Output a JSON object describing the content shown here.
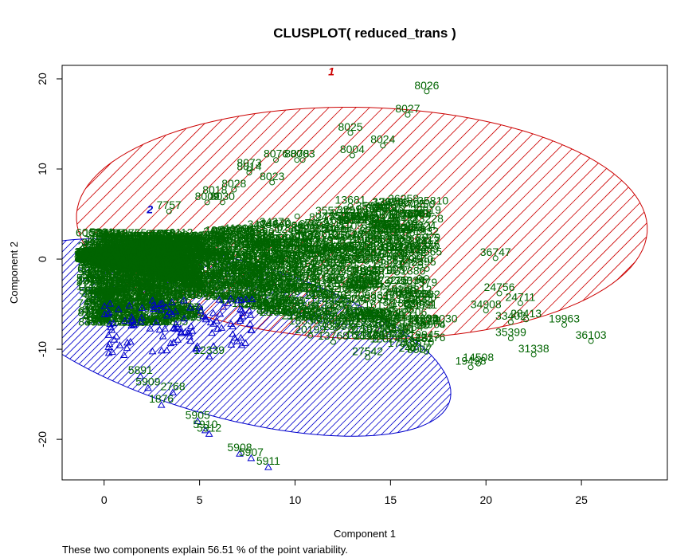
{
  "chart_data": {
    "type": "scatter",
    "title": "CLUSPLOT( reduced_trans )",
    "xlabel": "Component 1",
    "ylabel": "Component 2",
    "xlim": [
      -2.2,
      29.5
    ],
    "ylim": [
      -24.5,
      21.5
    ],
    "x_ticks": [
      0,
      5,
      10,
      15,
      20,
      25
    ],
    "y_ticks": [
      -20,
      -10,
      0,
      10,
      20
    ],
    "grid": false,
    "footnote": "These two components explain 56.51 % of the point variability.",
    "clusters": [
      {
        "label": "1",
        "center": [
          13.5,
          4.0
        ],
        "semi_axes": [
          15.0,
          12.8
        ],
        "angle_deg": -9,
        "color": "#cc0000",
        "marker": "circle"
      },
      {
        "label": "2",
        "center": [
          6.3,
          -8.7
        ],
        "semi_axes": [
          14.3,
          7.5
        ],
        "angle_deg": -41,
        "color": "#0000cc",
        "marker": "triangle"
      }
    ],
    "point_color": "#006400",
    "points": [
      {
        "x": 16.9,
        "y": 18.6,
        "label": "8026",
        "cluster": 1
      },
      {
        "x": 15.9,
        "y": 16.0,
        "label": "8027",
        "cluster": 1
      },
      {
        "x": 12.9,
        "y": 14.0,
        "label": "8025",
        "cluster": 1
      },
      {
        "x": 14.6,
        "y": 12.6,
        "label": "8024",
        "cluster": 1
      },
      {
        "x": 13.0,
        "y": 11.5,
        "label": "8004",
        "cluster": 1
      },
      {
        "x": 10.4,
        "y": 11.0,
        "label": "8003",
        "cluster": 1
      },
      {
        "x": 9.0,
        "y": 11.0,
        "label": "8076",
        "cluster": 1
      },
      {
        "x": 10.1,
        "y": 11.0,
        "label": "8078",
        "cluster": 1
      },
      {
        "x": 7.6,
        "y": 10.0,
        "label": "8073",
        "cluster": 1
      },
      {
        "x": 7.6,
        "y": 9.6,
        "label": "8014",
        "cluster": 1
      },
      {
        "x": 8.8,
        "y": 8.5,
        "label": "8023",
        "cluster": 1
      },
      {
        "x": 6.8,
        "y": 7.7,
        "label": "8028",
        "cluster": 1
      },
      {
        "x": 5.8,
        "y": 7.0,
        "label": "8018",
        "cluster": 1
      },
      {
        "x": 5.4,
        "y": 6.3,
        "label": "8009",
        "cluster": 1
      },
      {
        "x": 6.2,
        "y": 6.3,
        "label": "8030",
        "cluster": 1
      },
      {
        "x": 12.9,
        "y": 5.9,
        "label": "13681",
        "cluster": 1
      },
      {
        "x": 14.2,
        "y": 4.5,
        "label": "8007",
        "cluster": 1
      },
      {
        "x": 3.4,
        "y": 5.3,
        "label": "7757",
        "cluster": 1
      },
      {
        "x": 20.5,
        "y": 0.1,
        "label": "36747",
        "cluster": 1
      },
      {
        "x": 16.1,
        "y": 0.1,
        "label": "34072",
        "cluster": 1
      },
      {
        "x": 20.7,
        "y": -3.8,
        "label": "24756",
        "cluster": 1
      },
      {
        "x": 21.8,
        "y": -4.9,
        "label": "24711",
        "cluster": 1
      },
      {
        "x": 20.0,
        "y": -5.7,
        "label": "34908",
        "cluster": 1
      },
      {
        "x": 13.4,
        "y": -6.4,
        "label": "10996",
        "cluster": 1
      },
      {
        "x": 15.1,
        "y": -4.7,
        "label": "31706",
        "cluster": 1
      },
      {
        "x": 16.6,
        "y": -4.9,
        "label": "15030",
        "cluster": 1
      },
      {
        "x": 12.8,
        "y": -6.6,
        "label": "27538",
        "cluster": 1
      },
      {
        "x": 22.1,
        "y": -6.7,
        "label": "28413",
        "cluster": 1
      },
      {
        "x": 21.3,
        "y": -7.0,
        "label": "33402",
        "cluster": 1
      },
      {
        "x": 24.1,
        "y": -7.3,
        "label": "19963",
        "cluster": 1
      },
      {
        "x": 16.7,
        "y": -7.3,
        "label": "24934",
        "cluster": 1
      },
      {
        "x": 17.7,
        "y": -7.3,
        "label": "22030",
        "cluster": 1
      },
      {
        "x": 15.5,
        "y": -8.5,
        "label": "35091",
        "cluster": 1
      },
      {
        "x": 21.3,
        "y": -8.8,
        "label": "35399",
        "cluster": 1
      },
      {
        "x": 25.5,
        "y": -9.1,
        "label": "36103",
        "cluster": 1
      },
      {
        "x": 12.0,
        "y": -9.2,
        "label": "13768",
        "cluster": 1
      },
      {
        "x": 22.5,
        "y": -10.6,
        "label": "31338",
        "cluster": 1
      },
      {
        "x": 13.8,
        "y": -10.9,
        "label": "27542",
        "cluster": 1
      },
      {
        "x": 19.6,
        "y": -11.6,
        "label": "14508",
        "cluster": 1
      },
      {
        "x": 19.2,
        "y": -12.0,
        "label": "19498",
        "cluster": 1
      },
      {
        "x": 10.8,
        "y": -8.5,
        "label": "20199",
        "cluster": 1
      },
      {
        "x": 11.6,
        "y": -7.3,
        "label": "23934",
        "cluster": 1
      },
      {
        "x": 5.5,
        "y": -10.8,
        "label": "12339",
        "cluster": 2
      },
      {
        "x": 1.9,
        "y": -13.0,
        "label": "5891",
        "cluster": 2
      },
      {
        "x": 2.3,
        "y": -14.3,
        "label": "5909",
        "cluster": 2
      },
      {
        "x": 3.6,
        "y": -14.8,
        "label": "2768",
        "cluster": 2
      },
      {
        "x": 3.0,
        "y": -16.2,
        "label": "1876",
        "cluster": 2
      },
      {
        "x": 4.9,
        "y": -18.0,
        "label": "5905",
        "cluster": 2
      },
      {
        "x": 5.3,
        "y": -19.0,
        "label": "5910",
        "cluster": 2
      },
      {
        "x": 5.5,
        "y": -19.4,
        "label": "5912",
        "cluster": 2
      },
      {
        "x": 7.1,
        "y": -21.6,
        "label": "5908",
        "cluster": 2
      },
      {
        "x": 7.7,
        "y": -22.1,
        "label": "5907",
        "cluster": 2
      },
      {
        "x": 8.6,
        "y": -23.1,
        "label": "5911",
        "cluster": 2
      }
    ]
  }
}
